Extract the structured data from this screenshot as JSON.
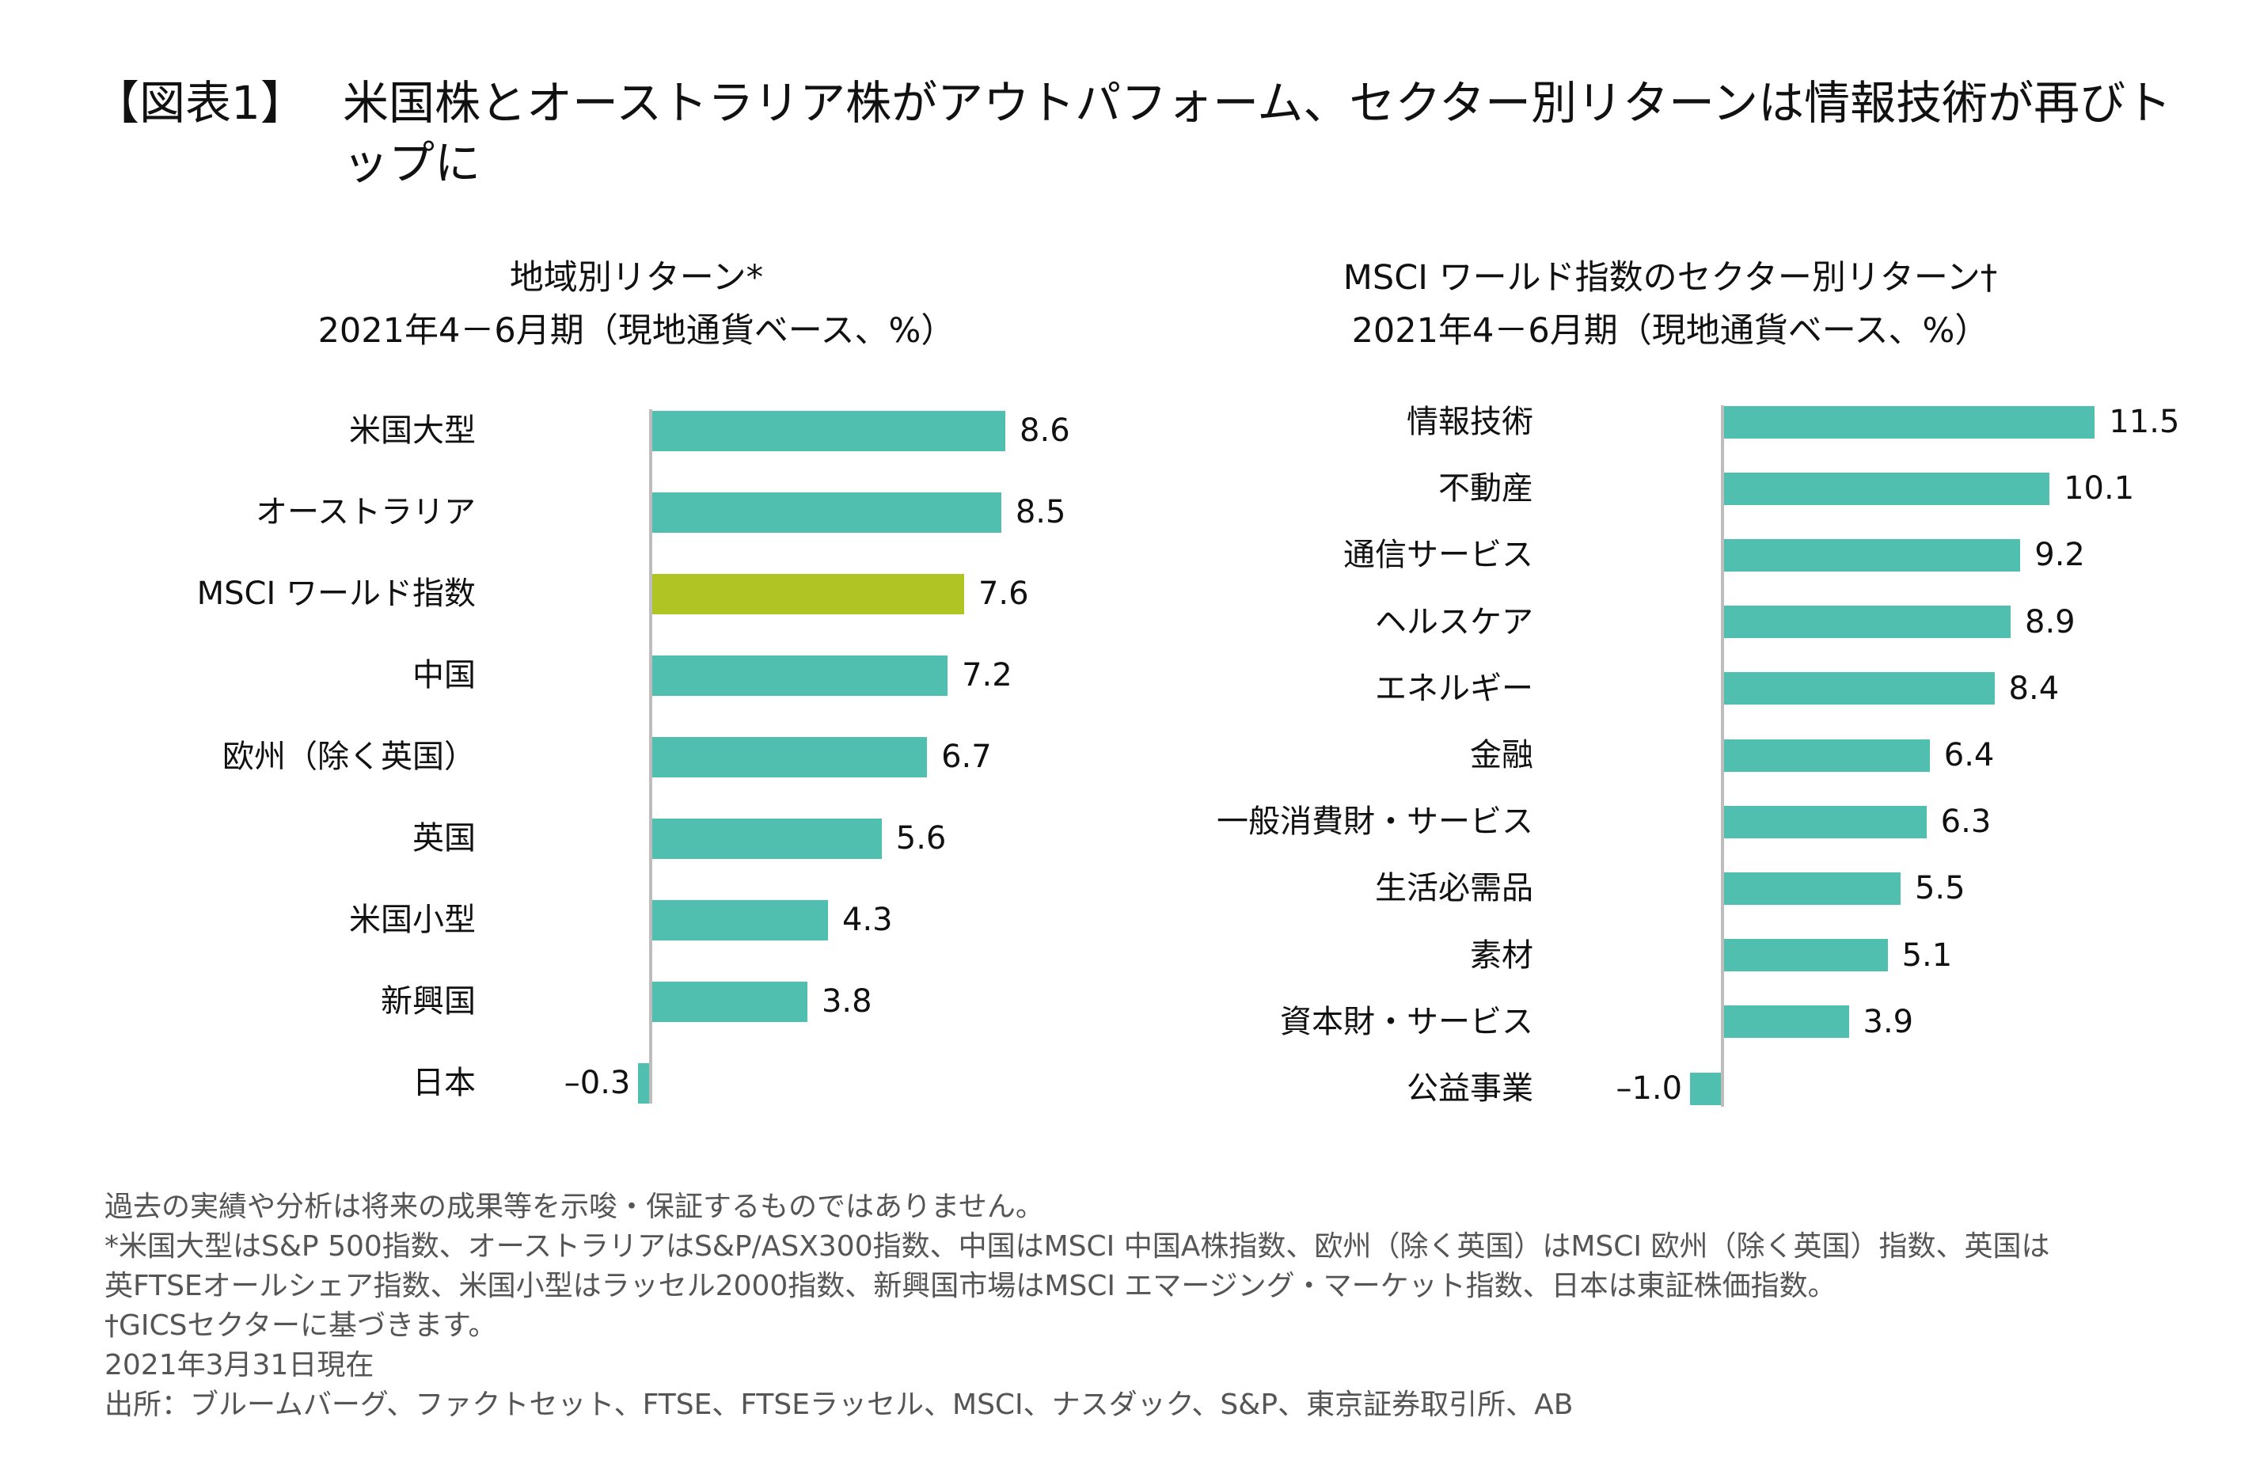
{
  "title": {
    "prefix": "【図表1】",
    "body": "米国株とオーストラリア株がアウトパフォーム、セクター別リターンは情報技術が再びトップに"
  },
  "colors": {
    "bar": "#50bfb0",
    "highlight": "#b0c424",
    "axis": "#bdbdbd"
  },
  "chart_data": [
    {
      "type": "bar",
      "orientation": "horizontal",
      "title": "地域別リターン*",
      "subtitle": "2021年4－6月期（現地通貨ベース、%）",
      "categories": [
        "米国大型",
        "オーストラリア",
        "MSCI ワールド指数",
        "中国",
        "欧州（除く英国）",
        "英国",
        "米国小型",
        "新興国",
        "日本"
      ],
      "values": [
        8.6,
        8.5,
        7.6,
        7.2,
        6.7,
        5.6,
        4.3,
        3.8,
        -0.3
      ],
      "labels": [
        "8.6",
        "8.5",
        "7.6",
        "7.2",
        "6.7",
        "5.6",
        "4.3",
        "3.8",
        "–0.3"
      ],
      "highlight": "MSCI ワールド指数"
    },
    {
      "type": "bar",
      "orientation": "horizontal",
      "title": "MSCI ワールド指数のセクター別リターン†",
      "subtitle": "2021年4－6月期（現地通貨ベース、%）",
      "categories": [
        "情報技術",
        "不動産",
        "通信サービス",
        "ヘルスケア",
        "エネルギー",
        "金融",
        "一般消費財・サービス",
        "生活必需品",
        "素材",
        "資本財・サービス",
        "公益事業"
      ],
      "values": [
        11.5,
        10.1,
        9.2,
        8.9,
        8.4,
        6.4,
        6.3,
        5.5,
        5.1,
        3.9,
        -1.0
      ],
      "labels": [
        "11.5",
        "10.1",
        "9.2",
        "8.9",
        "8.4",
        "6.4",
        "6.3",
        "5.5",
        "5.1",
        "3.9",
        "–1.0"
      ]
    }
  ],
  "notes": [
    "過去の実績や分析は将来の成果等を示唆・保証するものではありません。",
    "*米国大型はS&P 500指数、オーストラリアはS&P/ASX300指数、中国はMSCI 中国A株指数、欧州（除く英国）はMSCI 欧州（除く英国）指数、英国は",
    "英FTSEオールシェア指数、米国小型はラッセル2000指数、新興国市場はMSCI エマージング・マーケット指数、日本は東証株価指数。",
    "†GICSセクターに基づきます。",
    "2021年3月31日現在",
    "出所：ブルームバーグ、ファクトセット、FTSE、FTSEラッセル、MSCI、ナスダック、S&P、東京証券取引所、AB"
  ]
}
